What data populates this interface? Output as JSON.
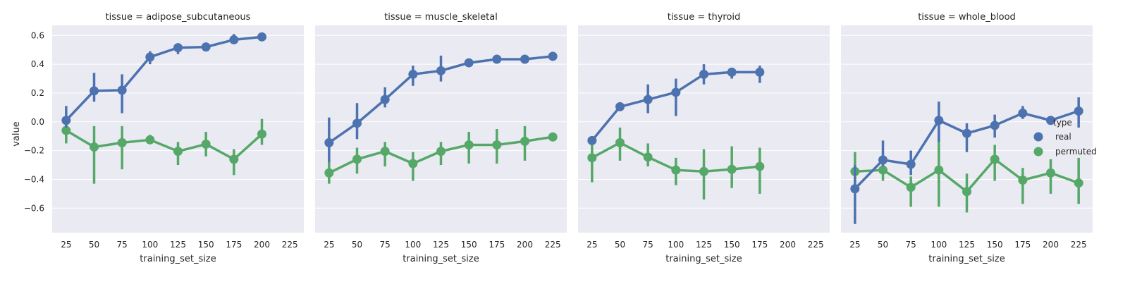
{
  "chart_data": {
    "type": "line",
    "ylabel": "value",
    "xlabel": "training_set_size",
    "categories": [
      "25",
      "50",
      "75",
      "100",
      "125",
      "150",
      "175",
      "200",
      "225"
    ],
    "ylim": [
      -0.77,
      0.67
    ],
    "yticks": [
      -0.6,
      -0.4,
      -0.2,
      0.0,
      0.2,
      0.4,
      0.6
    ],
    "ytick_labels": [
      "−0.6",
      "−0.4",
      "−0.2",
      "0.0",
      "0.2",
      "0.4",
      "0.6"
    ],
    "grid": true,
    "legend": {
      "title": "type",
      "position": "right",
      "entries": [
        {
          "name": "real",
          "color": "#4c72b0"
        },
        {
          "name": "permuted",
          "color": "#55a868"
        }
      ]
    },
    "panels": [
      {
        "title": "tissue = adipose_subcutaneous",
        "series": [
          {
            "name": "real",
            "color": "#4c72b0",
            "values": [
              0.01,
              0.215,
              0.22,
              0.45,
              0.515,
              0.52,
              0.57,
              0.59,
              null
            ],
            "ci": [
              [
                -0.04,
                0.11
              ],
              [
                0.14,
                0.34
              ],
              [
                0.06,
                0.33
              ],
              [
                0.4,
                0.49
              ],
              [
                0.47,
                0.53
              ],
              [
                0.51,
                0.53
              ],
              [
                0.55,
                0.61
              ],
              [
                0.58,
                0.6
              ],
              null
            ]
          },
          {
            "name": "permuted",
            "color": "#55a868",
            "values": [
              -0.06,
              -0.175,
              -0.145,
              -0.125,
              -0.205,
              -0.155,
              -0.26,
              -0.085,
              null
            ],
            "ci": [
              [
                -0.15,
                0.02
              ],
              [
                -0.43,
                -0.03
              ],
              [
                -0.33,
                -0.03
              ],
              [
                -0.15,
                -0.09
              ],
              [
                -0.3,
                -0.14
              ],
              [
                -0.24,
                -0.07
              ],
              [
                -0.37,
                -0.19
              ],
              [
                -0.16,
                0.02
              ],
              null
            ]
          }
        ]
      },
      {
        "title": "tissue = muscle_skeletal",
        "series": [
          {
            "name": "real",
            "color": "#4c72b0",
            "values": [
              -0.145,
              -0.01,
              0.155,
              0.33,
              0.355,
              0.41,
              0.435,
              0.435,
              0.455
            ],
            "ci": [
              [
                -0.28,
                0.03
              ],
              [
                -0.12,
                0.13
              ],
              [
                0.1,
                0.24
              ],
              [
                0.25,
                0.39
              ],
              [
                0.28,
                0.46
              ],
              [
                0.39,
                0.43
              ],
              [
                0.42,
                0.45
              ],
              [
                0.42,
                0.45
              ],
              [
                0.44,
                0.47
              ]
            ]
          },
          {
            "name": "permuted",
            "color": "#55a868",
            "values": [
              -0.355,
              -0.26,
              -0.205,
              -0.29,
              -0.205,
              -0.16,
              -0.16,
              -0.135,
              -0.105
            ],
            "ci": [
              [
                -0.43,
                -0.28
              ],
              [
                -0.36,
                -0.18
              ],
              [
                -0.31,
                -0.14
              ],
              [
                -0.41,
                -0.21
              ],
              [
                -0.3,
                -0.14
              ],
              [
                -0.29,
                -0.07
              ],
              [
                -0.29,
                -0.05
              ],
              [
                -0.27,
                -0.03
              ],
              [
                -0.12,
                -0.09
              ]
            ]
          }
        ]
      },
      {
        "title": "tissue = thyroid",
        "series": [
          {
            "name": "real",
            "color": "#4c72b0",
            "values": [
              -0.13,
              0.105,
              0.155,
              0.205,
              0.33,
              0.345,
              0.345,
              null,
              null
            ],
            "ci": [
              [
                -0.14,
                -0.12
              ],
              [
                0.08,
                0.12
              ],
              [
                0.06,
                0.26
              ],
              [
                0.04,
                0.3
              ],
              [
                0.26,
                0.4
              ],
              [
                0.3,
                0.37
              ],
              [
                0.27,
                0.39
              ],
              null,
              null
            ]
          },
          {
            "name": "permuted",
            "color": "#55a868",
            "values": [
              -0.25,
              -0.145,
              -0.245,
              -0.335,
              -0.345,
              -0.33,
              -0.31,
              null,
              null
            ],
            "ci": [
              [
                -0.42,
                -0.16
              ],
              [
                -0.27,
                -0.04
              ],
              [
                -0.31,
                -0.15
              ],
              [
                -0.44,
                -0.25
              ],
              [
                -0.54,
                -0.19
              ],
              [
                -0.46,
                -0.17
              ],
              [
                -0.5,
                -0.18
              ],
              null,
              null
            ]
          }
        ]
      },
      {
        "title": "tissue = whole_blood",
        "series": [
          {
            "name": "real",
            "color": "#4c72b0",
            "values": [
              -0.465,
              -0.265,
              -0.295,
              0.01,
              -0.08,
              -0.025,
              0.06,
              0.01,
              0.075
            ],
            "ci": [
              [
                -0.71,
                -0.3
              ],
              [
                -0.31,
                -0.13
              ],
              [
                -0.37,
                -0.2
              ],
              [
                -0.14,
                0.14
              ],
              [
                -0.21,
                -0.01
              ],
              [
                -0.11,
                0.05
              ],
              [
                0.02,
                0.11
              ],
              [
                -0.01,
                0.02
              ],
              [
                -0.04,
                0.17
              ]
            ]
          },
          {
            "name": "permuted",
            "color": "#55a868",
            "values": [
              -0.345,
              -0.335,
              -0.455,
              -0.335,
              -0.485,
              -0.26,
              -0.405,
              -0.355,
              -0.425
            ],
            "ci": [
              [
                -0.47,
                -0.21
              ],
              [
                -0.41,
                -0.25
              ],
              [
                -0.59,
                -0.38
              ],
              [
                -0.59,
                -0.06
              ],
              [
                -0.63,
                -0.36
              ],
              [
                -0.41,
                -0.16
              ],
              [
                -0.57,
                -0.32
              ],
              [
                -0.5,
                -0.26
              ],
              [
                -0.57,
                -0.25
              ]
            ]
          }
        ]
      }
    ]
  }
}
